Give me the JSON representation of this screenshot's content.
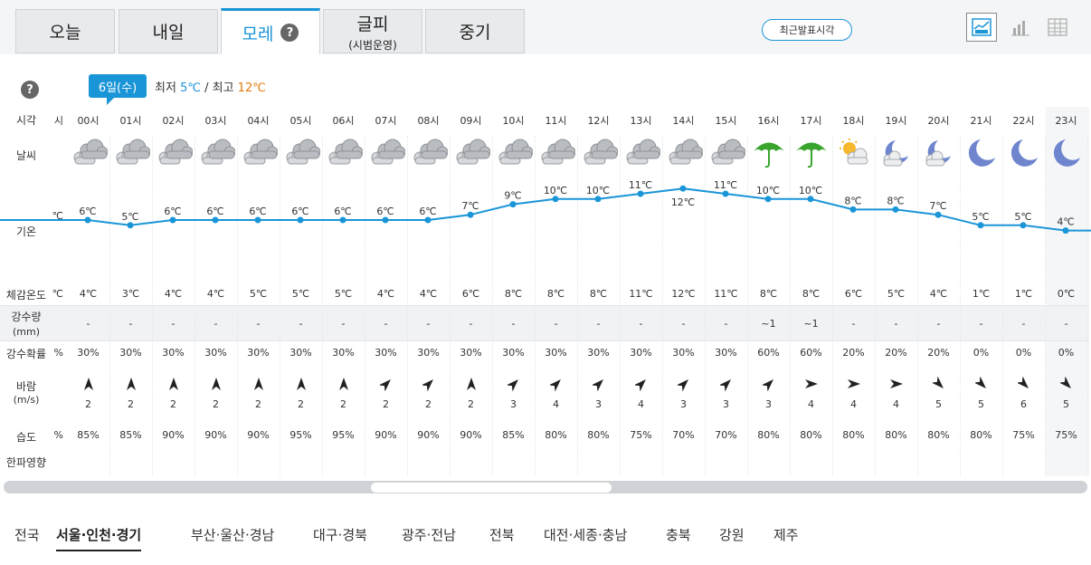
{
  "tabs": [
    {
      "label": "오늘",
      "sub": ""
    },
    {
      "label": "내일",
      "sub": ""
    },
    {
      "label": "모레",
      "sub": ""
    },
    {
      "label": "글피",
      "sub": "(시범운영)"
    },
    {
      "label": "중기",
      "sub": ""
    }
  ],
  "help_symbol": "?",
  "recent_btn": "최근발표시각",
  "date_badge": "6일(수)",
  "min_label": "최저",
  "min_val": "5℃",
  "sep": "/",
  "max_label": "최고",
  "max_val": "12℃",
  "row_labels": {
    "time": "시각",
    "weather": "날씨",
    "temp": "기온",
    "feels": "체감온도",
    "precip1": "강수량",
    "precip2": "(mm)",
    "prob": "강수확률",
    "wind1": "바람",
    "wind2": "(m/s)",
    "humidity": "습도",
    "cold": "한파영향"
  },
  "edge": {
    "time": "시",
    "temp": "℃",
    "feels": "℃",
    "prob": "%",
    "humidity": "%"
  },
  "hours": [
    {
      "time": "00시",
      "icon": "cloudy-icon",
      "temp": 6,
      "temp_label": "6℃",
      "feels": "4℃",
      "precip": "-",
      "prob": "30%",
      "wind_dir": "north",
      "wind": "2",
      "hum": "85%"
    },
    {
      "time": "01시",
      "icon": "cloudy-icon",
      "temp": 5,
      "temp_label": "5℃",
      "feels": "3℃",
      "precip": "-",
      "prob": "30%",
      "wind_dir": "north",
      "wind": "2",
      "hum": "85%"
    },
    {
      "time": "02시",
      "icon": "cloudy-icon",
      "temp": 6,
      "temp_label": "6℃",
      "feels": "4℃",
      "precip": "-",
      "prob": "30%",
      "wind_dir": "north",
      "wind": "2",
      "hum": "90%"
    },
    {
      "time": "03시",
      "icon": "cloudy-icon",
      "temp": 6,
      "temp_label": "6℃",
      "feels": "4℃",
      "precip": "-",
      "prob": "30%",
      "wind_dir": "north",
      "wind": "2",
      "hum": "90%"
    },
    {
      "time": "04시",
      "icon": "cloudy-icon",
      "temp": 6,
      "temp_label": "6℃",
      "feels": "5℃",
      "precip": "-",
      "prob": "30%",
      "wind_dir": "north",
      "wind": "2",
      "hum": "90%"
    },
    {
      "time": "05시",
      "icon": "cloudy-icon",
      "temp": 6,
      "temp_label": "6℃",
      "feels": "5℃",
      "precip": "-",
      "prob": "30%",
      "wind_dir": "north",
      "wind": "2",
      "hum": "95%"
    },
    {
      "time": "06시",
      "icon": "cloudy-icon",
      "temp": 6,
      "temp_label": "6℃",
      "feels": "5℃",
      "precip": "-",
      "prob": "30%",
      "wind_dir": "north",
      "wind": "2",
      "hum": "95%"
    },
    {
      "time": "07시",
      "icon": "cloudy-icon",
      "temp": 6,
      "temp_label": "6℃",
      "feels": "4℃",
      "precip": "-",
      "prob": "30%",
      "wind_dir": "northeast",
      "wind": "2",
      "hum": "90%"
    },
    {
      "time": "08시",
      "icon": "cloudy-icon",
      "temp": 6,
      "temp_label": "6℃",
      "feels": "4℃",
      "precip": "-",
      "prob": "30%",
      "wind_dir": "northeast",
      "wind": "2",
      "hum": "90%"
    },
    {
      "time": "09시",
      "icon": "cloudy-icon",
      "temp": 7,
      "temp_label": "7℃",
      "feels": "6℃",
      "precip": "-",
      "prob": "30%",
      "wind_dir": "north",
      "wind": "2",
      "hum": "90%"
    },
    {
      "time": "10시",
      "icon": "cloudy-icon",
      "temp": 9,
      "temp_label": "9℃",
      "feels": "8℃",
      "precip": "-",
      "prob": "30%",
      "wind_dir": "northeast",
      "wind": "3",
      "hum": "85%"
    },
    {
      "time": "11시",
      "icon": "cloudy-icon",
      "temp": 10,
      "temp_label": "10℃",
      "feels": "8℃",
      "precip": "-",
      "prob": "30%",
      "wind_dir": "northeast",
      "wind": "4",
      "hum": "80%"
    },
    {
      "time": "12시",
      "icon": "cloudy-icon",
      "temp": 10,
      "temp_label": "10℃",
      "feels": "8℃",
      "precip": "-",
      "prob": "30%",
      "wind_dir": "northeast",
      "wind": "3",
      "hum": "80%"
    },
    {
      "time": "13시",
      "icon": "cloudy-icon",
      "temp": 11,
      "temp_label": "11℃",
      "feels": "11℃",
      "precip": "-",
      "prob": "30%",
      "wind_dir": "northeast",
      "wind": "4",
      "hum": "75%"
    },
    {
      "time": "14시",
      "icon": "cloudy-icon",
      "temp": 12,
      "temp_label": "12℃",
      "feels": "12℃",
      "precip": "-",
      "prob": "30%",
      "wind_dir": "northeast",
      "wind": "3",
      "hum": "70%"
    },
    {
      "time": "15시",
      "icon": "cloudy-icon",
      "temp": 11,
      "temp_label": "11℃",
      "feels": "11℃",
      "precip": "-",
      "prob": "30%",
      "wind_dir": "northeast",
      "wind": "3",
      "hum": "70%"
    },
    {
      "time": "16시",
      "icon": "umbrella-icon",
      "temp": 10,
      "temp_label": "10℃",
      "feels": "8℃",
      "precip": "~1",
      "prob": "60%",
      "wind_dir": "northeast",
      "wind": "3",
      "hum": "80%"
    },
    {
      "time": "17시",
      "icon": "umbrella-icon",
      "temp": 10,
      "temp_label": "10℃",
      "feels": "8℃",
      "precip": "~1",
      "prob": "60%",
      "wind_dir": "east",
      "wind": "4",
      "hum": "80%"
    },
    {
      "time": "18시",
      "icon": "sun-cloud-icon",
      "temp": 8,
      "temp_label": "8℃",
      "feels": "6℃",
      "precip": "-",
      "prob": "20%",
      "wind_dir": "east",
      "wind": "4",
      "hum": "80%"
    },
    {
      "time": "19시",
      "icon": "moon-cloud-icon",
      "temp": 8,
      "temp_label": "8℃",
      "feels": "5℃",
      "precip": "-",
      "prob": "20%",
      "wind_dir": "east",
      "wind": "4",
      "hum": "80%"
    },
    {
      "time": "20시",
      "icon": "moon-cloud-icon",
      "temp": 7,
      "temp_label": "7℃",
      "feels": "4℃",
      "precip": "-",
      "prob": "20%",
      "wind_dir": "southeast",
      "wind": "5",
      "hum": "80%"
    },
    {
      "time": "21시",
      "icon": "moon-icon",
      "temp": 5,
      "temp_label": "5℃",
      "feels": "1℃",
      "precip": "-",
      "prob": "0%",
      "wind_dir": "southeast",
      "wind": "5",
      "hum": "80%"
    },
    {
      "time": "22시",
      "icon": "moon-icon",
      "temp": 5,
      "temp_label": "5℃",
      "feels": "1℃",
      "precip": "-",
      "prob": "0%",
      "wind_dir": "southeast",
      "wind": "6",
      "hum": "75%"
    },
    {
      "time": "23시",
      "icon": "moon-icon",
      "temp": 4,
      "temp_label": "4℃",
      "feels": "0℃",
      "precip": "-",
      "prob": "0%",
      "wind_dir": "southeast",
      "wind": "5",
      "hum": "75%"
    }
  ],
  "regions": [
    "전국",
    "서울·인천·경기",
    "부산·울산·경남",
    "대구·경북",
    "광주·전남",
    "전북",
    "대전·세종·충남",
    "충북",
    "강원",
    "제주"
  ],
  "selected_region": "서울·인천·경기",
  "colors": {
    "accent": "#1a95d8",
    "max": "#e07a0b",
    "umbrella": "#3aa52e"
  }
}
